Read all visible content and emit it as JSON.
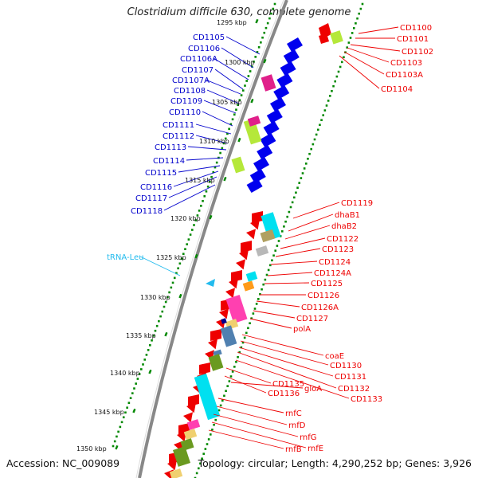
{
  "title": "Clostridium difficile 630, complete genome",
  "accession": "Accession: NC_009089",
  "topology": "Topology: circular; Length: 4,290,252 bp; Genes: 3,926",
  "colors": {
    "plus_strand": "#0000ee",
    "minus_strand": "#ee0000",
    "trna": "#22bbee",
    "backbone": "#888888",
    "ticks": "#008800"
  },
  "scale_labels": [
    "1295 kbp",
    "1300 kbp",
    "1305 kbp",
    "1310 kbp",
    "1315 kbp",
    "1320 kbp",
    "1325 kbp",
    "1330 kbp",
    "1335 kbp",
    "1340 kbp",
    "1345 kbp",
    "1350 kbp"
  ],
  "gene_labels_left": [
    {
      "text": "CD1105",
      "color": "#0000cc"
    },
    {
      "text": "CD1106",
      "color": "#0000cc"
    },
    {
      "text": "CD1106A",
      "color": "#0000cc"
    },
    {
      "text": "CD1107",
      "color": "#0000cc"
    },
    {
      "text": "CD1107A",
      "color": "#0000cc"
    },
    {
      "text": "CD1108",
      "color": "#0000cc"
    },
    {
      "text": "CD1109",
      "color": "#0000cc"
    },
    {
      "text": "CD1110",
      "color": "#0000cc"
    },
    {
      "text": "CD1111",
      "color": "#0000cc"
    },
    {
      "text": "CD1112",
      "color": "#0000cc"
    },
    {
      "text": "CD1113",
      "color": "#0000cc"
    },
    {
      "text": "CD1114",
      "color": "#0000cc"
    },
    {
      "text": "CD1115",
      "color": "#0000cc"
    },
    {
      "text": "CD1116",
      "color": "#0000cc"
    },
    {
      "text": "CD1117",
      "color": "#0000cc"
    },
    {
      "text": "CD1118",
      "color": "#0000cc"
    },
    {
      "text": "tRNA-Leu",
      "color": "#22bbee"
    }
  ],
  "gene_labels_right": [
    "CD1100",
    "CD1101",
    "CD1102",
    "CD1103",
    "CD1103A",
    "CD1104",
    "CD1119",
    "dhaB1",
    "dhaB2",
    "CD1122",
    "CD1123",
    "CD1124",
    "CD1124A",
    "CD1125",
    "CD1126",
    "CD1126A",
    "CD1127",
    "polA",
    "coaE",
    "CD1130",
    "CD1131",
    "CD1132",
    "CD1133",
    "CD1135",
    "CD1136",
    "gloA",
    "rnfC",
    "rnfD",
    "rnfG",
    "rnfE",
    "rnfB"
  ]
}
